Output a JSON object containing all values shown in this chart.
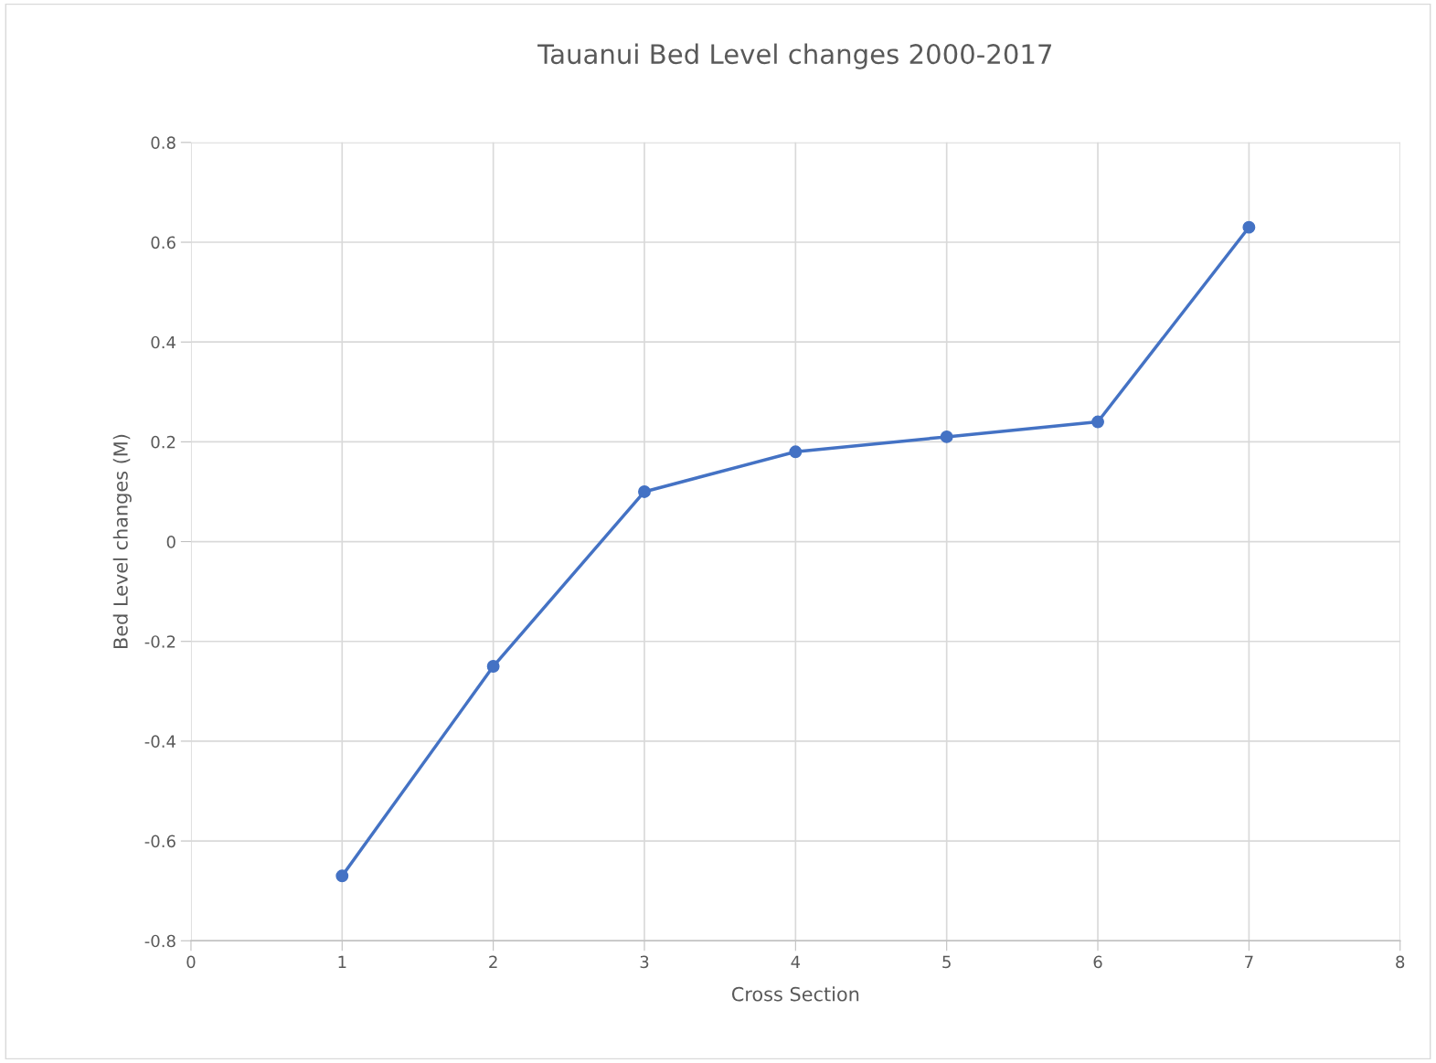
{
  "chart_data": {
    "type": "line",
    "title": "Tauanui Bed Level changes 2000-2017",
    "xlabel": "Cross Section",
    "ylabel": "Bed Level changes (M)",
    "x": [
      1,
      2,
      3,
      4,
      5,
      6,
      7
    ],
    "series": [
      {
        "color": "#4472c4",
        "values": [
          -0.67,
          -0.25,
          0.1,
          0.18,
          0.21,
          0.24,
          0.63
        ]
      }
    ],
    "xlim": [
      0,
      8
    ],
    "xticks": [
      0,
      1,
      2,
      3,
      4,
      5,
      6,
      7,
      8
    ],
    "ylim": [
      -0.8,
      0.8
    ],
    "yticks": [
      {
        "value": -0.8,
        "label": "-0.8"
      },
      {
        "value": -0.6,
        "label": "-0.6"
      },
      {
        "value": -0.4,
        "label": "-0.4"
      },
      {
        "value": -0.2,
        "label": "-0.2"
      },
      0,
      0.2,
      0.4,
      0.6,
      0.8
    ],
    "grid": true,
    "marker": "circle",
    "line_style": "solid"
  }
}
